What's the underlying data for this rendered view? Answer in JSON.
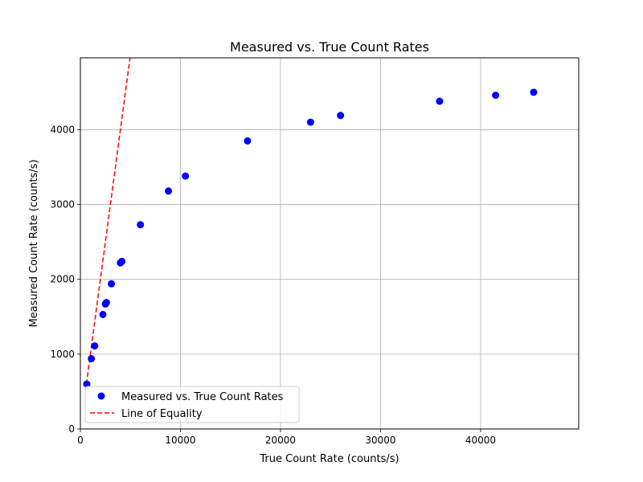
{
  "chart_data": {
    "type": "scatter",
    "title": "Measured vs. True Count Rates",
    "xlabel": "True Count Rate (counts/s)",
    "ylabel": "Measured Count Rate (counts/s)",
    "xlim": [
      0,
      49800
    ],
    "ylim": [
      0,
      4960
    ],
    "xticks": [
      0,
      10000,
      20000,
      30000,
      40000
    ],
    "xtick_labels": [
      "0",
      "10000",
      "20000",
      "30000",
      "40000"
    ],
    "yticks": [
      0,
      1000,
      2000,
      3000,
      4000
    ],
    "ytick_labels": [
      "0",
      "1000",
      "2000",
      "3000",
      "4000"
    ],
    "grid": true,
    "legend_position": "lower-left",
    "series": [
      {
        "name": "Measured vs. True Count Rates",
        "kind": "scatter",
        "color": "#0000ff",
        "points": [
          [
            640,
            600
          ],
          [
            1100,
            940
          ],
          [
            1430,
            1110
          ],
          [
            2250,
            1530
          ],
          [
            2500,
            1670
          ],
          [
            2600,
            1690
          ],
          [
            3100,
            1940
          ],
          [
            4000,
            2220
          ],
          [
            4150,
            2240
          ],
          [
            6000,
            2730
          ],
          [
            8800,
            3180
          ],
          [
            10500,
            3380
          ],
          [
            16700,
            3850
          ],
          [
            23000,
            4100
          ],
          [
            26000,
            4190
          ],
          [
            35900,
            4380
          ],
          [
            41500,
            4460
          ],
          [
            45300,
            4500
          ]
        ]
      },
      {
        "name": "Line of Equality",
        "kind": "line",
        "style": "dashed",
        "color": "#ff0000",
        "points": [
          [
            600,
            600
          ],
          [
            4960,
            4960
          ]
        ]
      }
    ]
  }
}
